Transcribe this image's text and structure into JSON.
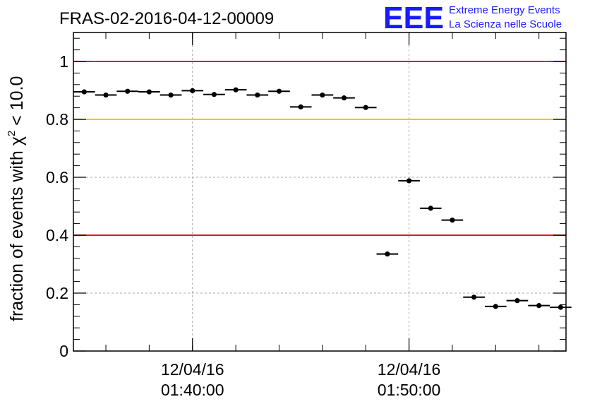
{
  "chart_data": {
    "type": "scatter",
    "title": "FRAS-02-2016-04-12-00009",
    "ylabel": {
      "main": "fraction of events with χ",
      "sup": "2",
      "tail": " < 10.0"
    },
    "ylim": [
      0,
      1.1
    ],
    "yticks": [
      0,
      0.2,
      0.4,
      0.6,
      0.8,
      1
    ],
    "ytick_labels": [
      "0",
      "0.2",
      "0.4",
      "0.6",
      "0.8",
      "1"
    ],
    "x_unit": "minutes after 01:34:30 on 12/04/16",
    "xlim": [
      0,
      22.75
    ],
    "xticks": [
      {
        "x": 5.5,
        "date": "12/04/16",
        "time": "01:40:00"
      },
      {
        "x": 15.5,
        "date": "12/04/16",
        "time": "01:50:00"
      }
    ],
    "minor_xtick_spacing": 2,
    "bin_half_width": 0.5,
    "x": [
      0.5,
      1.5,
      2.5,
      3.5,
      4.5,
      5.5,
      6.5,
      7.5,
      8.5,
      9.5,
      10.5,
      11.5,
      12.5,
      13.5,
      14.5,
      15.5,
      16.5,
      17.5,
      18.5,
      19.5,
      20.5,
      21.5,
      22.5
    ],
    "values": [
      0.895,
      0.884,
      0.897,
      0.895,
      0.884,
      0.899,
      0.886,
      0.902,
      0.884,
      0.897,
      0.843,
      0.884,
      0.874,
      0.841,
      0.335,
      0.588,
      0.493,
      0.452,
      0.186,
      0.154,
      0.174,
      0.157,
      0.151
    ],
    "reference_lines": [
      {
        "y": 1.0,
        "color": "#e0191c"
      },
      {
        "y": 0.8,
        "color": "#f5c400"
      },
      {
        "y": 0.4,
        "color": "#e0191c"
      }
    ],
    "grid": true
  },
  "logo": {
    "mark": "EEE",
    "line1": "Extreme Energy Events",
    "line2": "La Scienza nelle Scuole",
    "color": "#1a1aff"
  }
}
